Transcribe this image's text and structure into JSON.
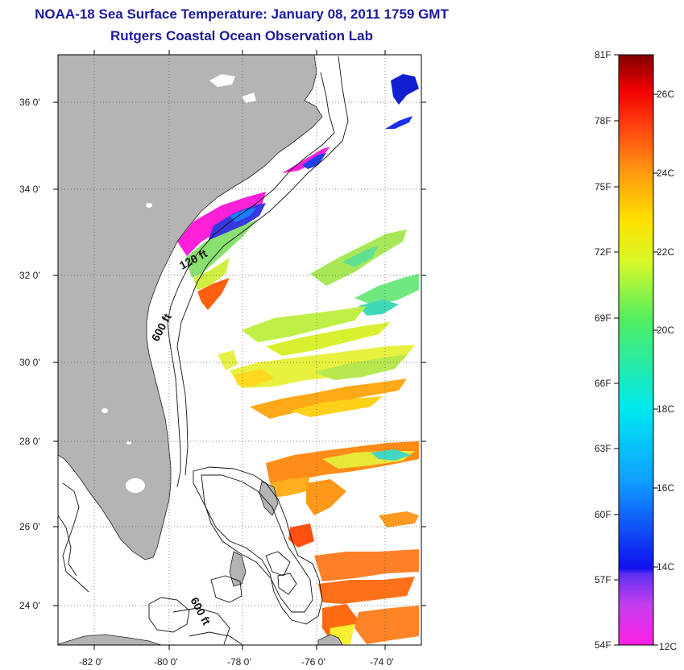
{
  "header": {
    "title": "NOAA-18 Sea Surface Temperature:  January 08, 2011 1759 GMT",
    "subtitle": "Rutgers Coastal Ocean Observation Lab"
  },
  "map": {
    "lat_labels": [
      "36 0'",
      "34 0'",
      "32 0'",
      "30 0'",
      "28 0'",
      "26 0'",
      "24 0'"
    ],
    "lon_labels": [
      "-82 0'",
      "-80 0'",
      "-78 0'",
      "-76 0'",
      "-74 0'"
    ],
    "contour_labels": [
      "120 ft",
      "600 ft",
      "600 ft"
    ],
    "colors": {
      "land": "#b4b4b4",
      "ocean": "#ffffff",
      "title": "#1a1a9c"
    }
  },
  "colorbar": {
    "f_labels": [
      "81F",
      "78F",
      "75F",
      "72F",
      "69F",
      "66F",
      "63F",
      "60F",
      "57F",
      "54F"
    ],
    "c_labels": [
      "26C",
      "24C",
      "22C",
      "20C",
      "18C",
      "16C",
      "14C",
      "12C"
    ]
  }
}
